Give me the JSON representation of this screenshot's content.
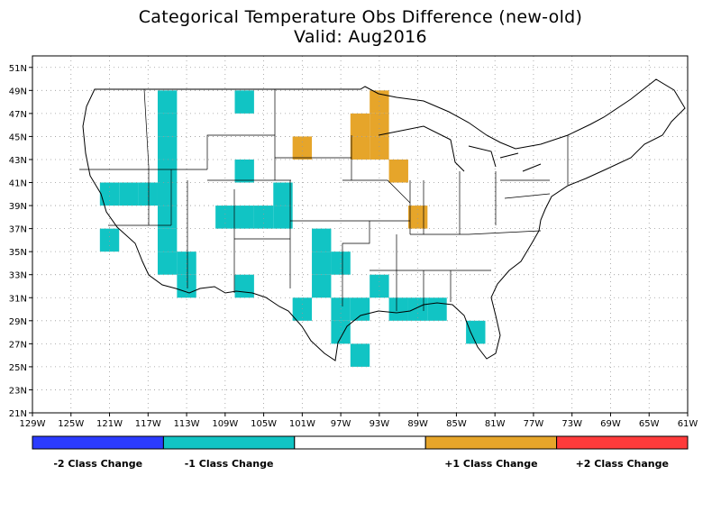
{
  "title": "Categorical Temperature Obs Difference (new-old)",
  "subtitle": "Valid: Aug2016",
  "map": {
    "lon_range": [
      -129,
      -61
    ],
    "lat_range": [
      21,
      52
    ],
    "grid": true,
    "x_ticks": [
      "129W",
      "125W",
      "121W",
      "117W",
      "113W",
      "109W",
      "105W",
      "101W",
      "97W",
      "93W",
      "89W",
      "85W",
      "81W",
      "77W",
      "73W",
      "69W",
      "65W",
      "61W"
    ],
    "y_ticks": [
      "51N",
      "49N",
      "47N",
      "45N",
      "43N",
      "41N",
      "39N",
      "37N",
      "35N",
      "33N",
      "31N",
      "29N",
      "27N",
      "25N",
      "23N",
      "21N"
    ]
  },
  "legend": {
    "classes": [
      {
        "value": -2,
        "label": "-2 Class Change",
        "color": "#2b3bff"
      },
      {
        "value": -1,
        "label": "-1 Class Change",
        "color": "#11c4c4"
      },
      {
        "value": 0,
        "label": "",
        "color": "#ffffff"
      },
      {
        "value": 1,
        "label": "+1 Class Change",
        "color": "#e6a52a"
      },
      {
        "value": 2,
        "label": "+2 Class Change",
        "color": "#ff3b3b"
      }
    ]
  },
  "colors": {
    "minus1": "#11c4c4",
    "plus1": "#e6a52a",
    "outline": "#000000",
    "grid": "#999999"
  },
  "chart_data": {
    "type": "heatmap",
    "title": "Categorical Temperature Obs Difference (new-old)",
    "subtitle": "Valid: Aug2016",
    "cell_size_deg": 2,
    "cells": [
      {
        "lon": -115,
        "lat": 48,
        "value": -1
      },
      {
        "lon": -107,
        "lat": 48,
        "value": -1
      },
      {
        "lon": -115,
        "lat": 46,
        "value": -1
      },
      {
        "lon": -115,
        "lat": 44,
        "value": -1
      },
      {
        "lon": -115,
        "lat": 42,
        "value": -1
      },
      {
        "lon": -121,
        "lat": 40,
        "value": -1
      },
      {
        "lon": -119,
        "lat": 40,
        "value": -1
      },
      {
        "lon": -117,
        "lat": 40,
        "value": -1
      },
      {
        "lon": -115,
        "lat": 40,
        "value": -1
      },
      {
        "lon": -115,
        "lat": 38,
        "value": -1
      },
      {
        "lon": -115,
        "lat": 36,
        "value": -1
      },
      {
        "lon": -115,
        "lat": 34,
        "value": -1
      },
      {
        "lon": -107,
        "lat": 42,
        "value": -1
      },
      {
        "lon": -103,
        "lat": 40,
        "value": -1
      },
      {
        "lon": -109,
        "lat": 38,
        "value": -1
      },
      {
        "lon": -107,
        "lat": 38,
        "value": -1
      },
      {
        "lon": -105,
        "lat": 38,
        "value": -1
      },
      {
        "lon": -103,
        "lat": 38,
        "value": -1
      },
      {
        "lon": -121,
        "lat": 36,
        "value": -1
      },
      {
        "lon": -113,
        "lat": 34,
        "value": -1
      },
      {
        "lon": -113,
        "lat": 32,
        "value": -1
      },
      {
        "lon": -107,
        "lat": 32,
        "value": -1
      },
      {
        "lon": -99,
        "lat": 36,
        "value": -1
      },
      {
        "lon": -99,
        "lat": 34,
        "value": -1
      },
      {
        "lon": -97,
        "lat": 34,
        "value": -1
      },
      {
        "lon": -99,
        "lat": 32,
        "value": -1
      },
      {
        "lon": -93,
        "lat": 32,
        "value": -1
      },
      {
        "lon": -97,
        "lat": 30,
        "value": -1
      },
      {
        "lon": -101,
        "lat": 30,
        "value": -1
      },
      {
        "lon": -95,
        "lat": 30,
        "value": -1
      },
      {
        "lon": -97,
        "lat": 28,
        "value": -1
      },
      {
        "lon": -95,
        "lat": 26,
        "value": -1
      },
      {
        "lon": -91,
        "lat": 30,
        "value": -1
      },
      {
        "lon": -89,
        "lat": 30,
        "value": -1
      },
      {
        "lon": -87,
        "lat": 30,
        "value": -1
      },
      {
        "lon": -83,
        "lat": 28,
        "value": -1
      },
      {
        "lon": -93,
        "lat": 48,
        "value": 1
      },
      {
        "lon": -95,
        "lat": 46,
        "value": 1
      },
      {
        "lon": -93,
        "lat": 46,
        "value": 1
      },
      {
        "lon": -95,
        "lat": 44,
        "value": 1
      },
      {
        "lon": -93,
        "lat": 44,
        "value": 1
      },
      {
        "lon": -101,
        "lat": 44,
        "value": 1
      },
      {
        "lon": -91,
        "lat": 42,
        "value": 1
      },
      {
        "lon": -89,
        "lat": 38,
        "value": 1
      }
    ]
  }
}
